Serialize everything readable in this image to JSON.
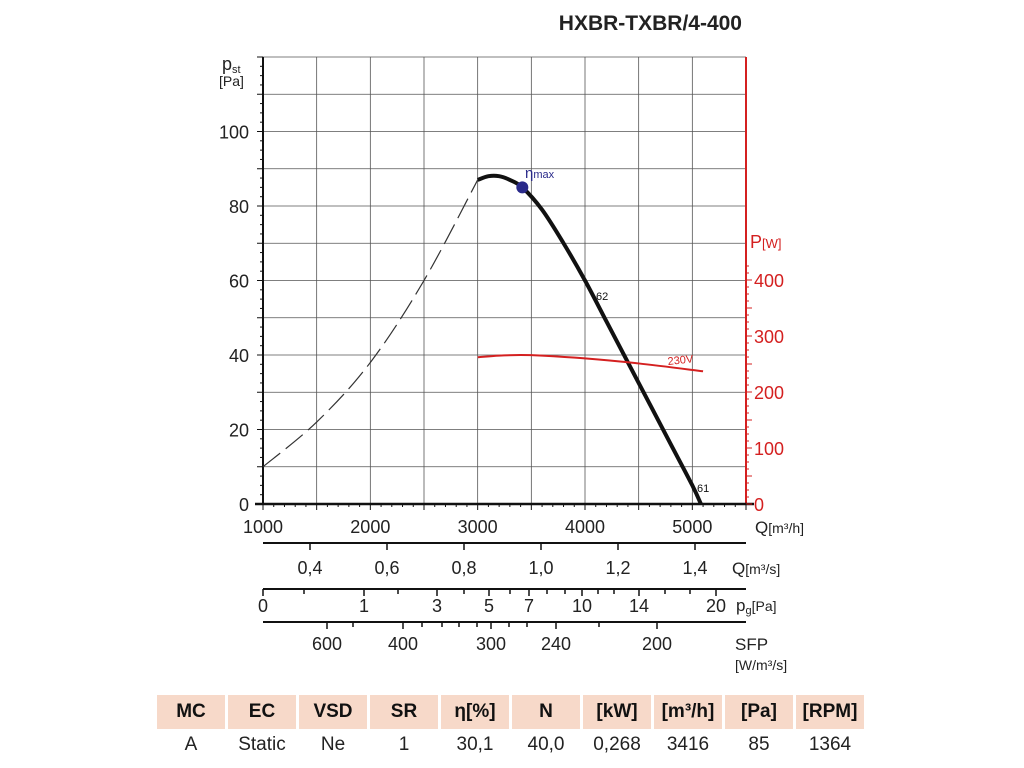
{
  "chart_data": {
    "type": "line",
    "title": "HXBR-TXBR/4-400",
    "y_left": {
      "label": "p",
      "label_sub": "st",
      "unit": "[Pa]",
      "range": [
        0,
        120
      ],
      "ticks": [
        0,
        20,
        40,
        60,
        80,
        100
      ],
      "tick_labels": [
        "0",
        "20",
        "40",
        "60",
        "80",
        "100"
      ]
    },
    "y_right": {
      "label": "P",
      "unit": "[W]",
      "range": [
        0,
        430
      ],
      "ticks": [
        0,
        100,
        200,
        300,
        400
      ],
      "tick_labels": [
        "0",
        "100",
        "200",
        "300",
        "400"
      ],
      "color": "#d42020"
    },
    "x": {
      "unit": "Q",
      "unit_sub": "[m³/h]",
      "range": [
        1000,
        5500
      ],
      "ticks": [
        1000,
        2000,
        3000,
        4000,
        5000
      ],
      "tick_labels": [
        "1000",
        "2000",
        "3000",
        "4000",
        "5000"
      ]
    },
    "series": [
      {
        "name": "pressure-dashed",
        "style": "dashed",
        "x": [
          1000,
          1500,
          2000,
          2500,
          3000
        ],
        "y": [
          10,
          22,
          38,
          60,
          87
        ]
      },
      {
        "name": "pressure",
        "label_top": "62",
        "label_bottom": "61",
        "x": [
          3000,
          3100,
          3200,
          3300,
          3416,
          3600,
          3800,
          4000,
          4200,
          4400,
          4600,
          4800,
          5000,
          5080
        ],
        "y": [
          87,
          88,
          88,
          87,
          85,
          79,
          70,
          60,
          49,
          38,
          27,
          16,
          5,
          0
        ]
      },
      {
        "name": "power",
        "label": "230V",
        "axis": "right",
        "x": [
          3000,
          3200,
          3400,
          3600,
          4000,
          4500,
          5100
        ],
        "y": [
          262,
          265,
          266,
          265,
          260,
          251,
          237
        ]
      }
    ],
    "annotation": {
      "text": "η",
      "sub": "max",
      "x": 3416,
      "y": 85,
      "color": "#2a2a8a"
    },
    "secondary_axes": [
      {
        "unit": "Q",
        "unit_sub": "[m³/s]",
        "tick_labels": [
          "0,4",
          "0,6",
          "0,8",
          "1,0",
          "1,2",
          "1,4"
        ]
      },
      {
        "unit": "p",
        "unit_sub": "g",
        "unit_tail": "[Pa]",
        "tick_labels": [
          "0",
          "1",
          "3",
          "5",
          "7",
          "10",
          "14",
          "20"
        ]
      },
      {
        "unit": "SFP",
        "unit_sub": "[W/m³/s]",
        "tick_labels": [
          "600",
          "400",
          "300",
          "240",
          "200"
        ]
      }
    ]
  },
  "table": {
    "headers": [
      "MC",
      "EC",
      "VSD",
      "SR",
      "η[%]",
      "N",
      "[kW]",
      "[m³/h]",
      "[Pa]",
      "[RPM]"
    ],
    "values": [
      "A",
      "Static",
      "Ne",
      "1",
      "30,1",
      "40,0",
      "0,268",
      "3416",
      "85",
      "1364"
    ]
  }
}
